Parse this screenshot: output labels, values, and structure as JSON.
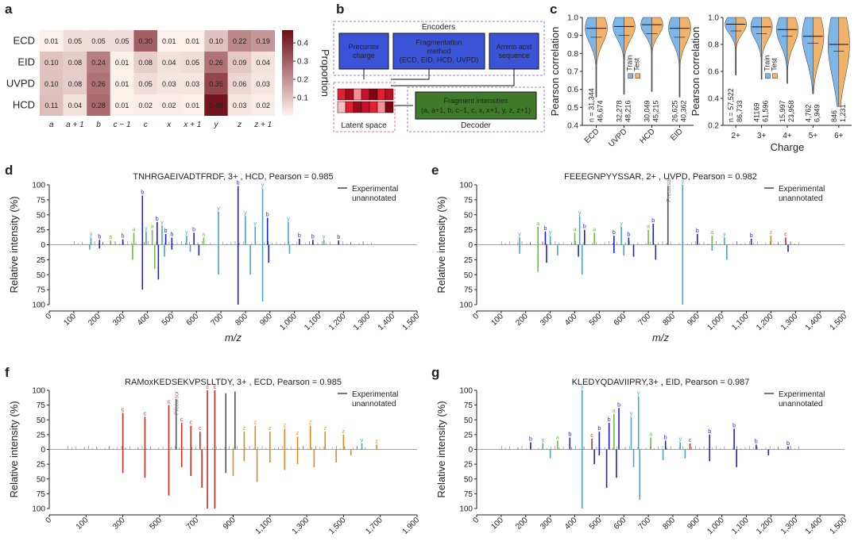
{
  "panels": {
    "a": "a",
    "b": "b",
    "c": "c",
    "d": "d",
    "e": "e",
    "f": "f",
    "g": "g"
  },
  "heatmap": {
    "rows": [
      "ECD",
      "EID",
      "UVPD",
      "HCD"
    ],
    "cols": [
      "a",
      "a + 1",
      "b",
      "c − 1",
      "c",
      "x",
      "x + 1",
      "y",
      "z",
      "z + 1"
    ],
    "values": [
      [
        0.01,
        0.05,
        0.05,
        0.05,
        0.3,
        0.01,
        0.01,
        0.1,
        0.22,
        0.19
      ],
      [
        0.1,
        0.08,
        0.24,
        0.01,
        0.08,
        0.04,
        0.05,
        0.26,
        0.09,
        0.04
      ],
      [
        0.1,
        0.08,
        0.26,
        0.01,
        0.05,
        0.03,
        0.03,
        0.35,
        0.06,
        0.03
      ],
      [
        0.11,
        0.04,
        0.28,
        0.01,
        0.02,
        0.02,
        0.01,
        0.45,
        0.03,
        0.02
      ]
    ],
    "value_labels": [
      [
        "0.01",
        "0.05",
        "0.05",
        "0.05",
        "0.30",
        "0.01",
        "0.01",
        "0.10",
        "0.22",
        "0.19"
      ],
      [
        "0.10",
        "0.08",
        "0.24",
        "0.01",
        "0.08",
        "0.04",
        "0.05",
        "0.26",
        "0.09",
        "0.04"
      ],
      [
        "0.10",
        "0.08",
        "0.26",
        "0.01",
        "0.05",
        "0.03",
        "0.03",
        "0.35",
        "0.06",
        "0.03"
      ],
      [
        "0.11",
        "0.04",
        "0.28",
        "0.01",
        "0.02",
        "0.02",
        "0.01",
        "0.45",
        "0.03",
        "0.02"
      ]
    ],
    "colorbar_label": "Proportion",
    "colorbar_ticks": [
      "0.1",
      "0.2",
      "0.3",
      "0.4"
    ],
    "colorbar_tick_values": [
      0.1,
      0.2,
      0.3,
      0.4
    ],
    "vmax": 0.47
  },
  "diagram": {
    "encoders": "Encoders",
    "precursor": [
      "Precursor",
      "charge"
    ],
    "fragmentation": [
      "Fragmentation",
      "method",
      "(ECD, EID, HCD, UVPD)"
    ],
    "amino": [
      "Amino acid",
      "sequence"
    ],
    "latent": "Latent space",
    "fragint": [
      "Fragment intensities",
      "(a, a+1, b, c−1, c, x, x+1, y, z, z+1)"
    ],
    "decoder": "Decoder",
    "colors": {
      "encoder_box": "#3b53d6",
      "decoder_box": "#3f7a2a",
      "latent": "#c8102e"
    }
  },
  "violin_left": {
    "ylabel": "Pearson correlation",
    "categories": [
      "ECD",
      "UVPD",
      "HCD",
      "EID"
    ],
    "yticks": [
      "0.4",
      "0.5",
      "0.6",
      "0.7",
      "0.8",
      "0.9",
      "1.0"
    ],
    "ylim": [
      0.4,
      1.0
    ],
    "train_counts": [
      "n = 31,344",
      "32,278",
      "30,049",
      "26,625"
    ],
    "test_counts": [
      "46,674",
      "48,216",
      "45,215",
      "40,362"
    ],
    "legend": [
      "Train",
      "Test"
    ],
    "medians": [
      0.94,
      0.95,
      0.96,
      0.94
    ]
  },
  "violin_right": {
    "ylabel": "Pearson correlation",
    "xlabel": "Charge",
    "categories": [
      "2+",
      "3+",
      "4+",
      "5+",
      "6+"
    ],
    "yticks": [
      "0.2",
      "0.4",
      "0.6",
      "0.8",
      "1.0"
    ],
    "ylim": [
      0.2,
      1.0
    ],
    "train_counts": [
      "n = 57,522",
      "41169",
      "15,997",
      "4,762",
      "846"
    ],
    "test_counts": [
      "86,733",
      "61,596",
      "23,958",
      "6,949",
      "1,231"
    ],
    "legend": [
      "Train",
      "Test"
    ],
    "medians": [
      0.95,
      0.93,
      0.91,
      0.86,
      0.8
    ]
  },
  "colors": {
    "train": "#7fb6e8",
    "test": "#f1b26c",
    "b": "#1f1fd1",
    "y": "#45a7c2",
    "a": "#6cbf3a",
    "c": "#cc2b1d",
    "z": "#e08a1a",
    "other": "#555555"
  },
  "spectra": [
    {
      "id": "d",
      "title": "TNHRGAEIVADTFRDF, 3+ , HCD, Pearson = 0.985",
      "xticks": [
        "0",
        "100",
        "200",
        "300",
        "400",
        "500",
        "600",
        "700",
        "800",
        "900",
        "1,000",
        "1,100",
        "1,200",
        "1,300",
        "1,400",
        "1,500"
      ],
      "xlim": [
        0,
        1500
      ],
      "xlabel": "m/z",
      "ylabel": "Relative intensity (%)",
      "yticks": [
        "100",
        "75",
        "50",
        "25",
        "0",
        "25",
        "50",
        "75",
        "100"
      ],
      "legend": [
        "Experimental",
        "unannotated"
      ],
      "peaks": [
        [
          170,
          12,
          "y"
        ],
        [
          205,
          8,
          "b"
        ],
        [
          250,
          7,
          "a"
        ],
        [
          300,
          9,
          "b"
        ],
        [
          345,
          20,
          "a"
        ],
        [
          380,
          82,
          "b"
        ],
        [
          395,
          22,
          "y"
        ],
        [
          420,
          25,
          "a"
        ],
        [
          440,
          38,
          "b"
        ],
        [
          460,
          32,
          "y"
        ],
        [
          475,
          18,
          "b"
        ],
        [
          500,
          12,
          "b"
        ],
        [
          560,
          15,
          "y"
        ],
        [
          590,
          20,
          "b"
        ],
        [
          630,
          12,
          "a"
        ],
        [
          690,
          55,
          "y"
        ],
        [
          770,
          98,
          "b"
        ],
        [
          800,
          48,
          "y"
        ],
        [
          840,
          30,
          "y"
        ],
        [
          870,
          94,
          "y"
        ],
        [
          890,
          45,
          "b"
        ],
        [
          975,
          38,
          "y"
        ],
        [
          1020,
          10,
          "b"
        ],
        [
          1075,
          8,
          "b"
        ],
        [
          1120,
          8,
          "y"
        ],
        [
          1180,
          7,
          "b"
        ]
      ],
      "mirror": [
        [
          165,
          -8,
          "y"
        ],
        [
          205,
          -6,
          "b"
        ],
        [
          340,
          -25,
          "a"
        ],
        [
          380,
          -75,
          "b"
        ],
        [
          430,
          -40,
          "a"
        ],
        [
          445,
          -58,
          "b"
        ],
        [
          470,
          -20,
          "y"
        ],
        [
          500,
          -8,
          "b"
        ],
        [
          575,
          -12,
          "y"
        ],
        [
          610,
          -18,
          "b"
        ],
        [
          690,
          -50,
          "y"
        ],
        [
          770,
          -100,
          "b"
        ],
        [
          820,
          -50,
          "y"
        ],
        [
          870,
          -95,
          "y"
        ],
        [
          895,
          -30,
          "b"
        ],
        [
          980,
          -15,
          "y"
        ]
      ]
    },
    {
      "id": "e",
      "title": "FEEEGNPYYSSAR, 2+ , UVPD, Pearson = 0.982",
      "xticks": [
        "0",
        "100",
        "200",
        "300",
        "400",
        "500",
        "600",
        "700",
        "800",
        "900",
        "1,000",
        "1,100",
        "1,200",
        "1,300",
        "1,400",
        "1,500"
      ],
      "xlim": [
        0,
        1500
      ],
      "xlabel": "m/z",
      "ylabel": "Relative intensity (%)",
      "yticks": [
        "100",
        "75",
        "50",
        "25",
        "0",
        "25",
        "50",
        "75",
        "100"
      ],
      "legend": [
        "Experimental",
        "unannotated"
      ],
      "annot": "Precursor",
      "peaks": [
        [
          175,
          12,
          "y"
        ],
        [
          250,
          30,
          "a"
        ],
        [
          280,
          22,
          "b"
        ],
        [
          300,
          15,
          "y"
        ],
        [
          400,
          20,
          "a"
        ],
        [
          420,
          48,
          "y"
        ],
        [
          440,
          25,
          "b"
        ],
        [
          480,
          20,
          "a"
        ],
        [
          560,
          15,
          "b"
        ],
        [
          590,
          30,
          "y"
        ],
        [
          620,
          12,
          "b"
        ],
        [
          700,
          25,
          "a"
        ],
        [
          720,
          35,
          "b"
        ],
        [
          780,
          98,
          "other"
        ],
        [
          840,
          100,
          "y"
        ],
        [
          900,
          18,
          "b"
        ],
        [
          960,
          15,
          "a"
        ],
        [
          1010,
          12,
          "y"
        ],
        [
          1120,
          10,
          "b"
        ],
        [
          1200,
          15,
          "z"
        ],
        [
          1260,
          12,
          "c"
        ]
      ],
      "mirror": [
        [
          175,
          -15,
          "y"
        ],
        [
          250,
          -45,
          "a"
        ],
        [
          285,
          -30,
          "b"
        ],
        [
          330,
          -18,
          "y"
        ],
        [
          415,
          -20,
          "b"
        ],
        [
          430,
          -50,
          "y"
        ],
        [
          560,
          -14,
          "b"
        ],
        [
          600,
          -18,
          "y"
        ],
        [
          640,
          -20,
          "b"
        ],
        [
          730,
          -25,
          "b"
        ],
        [
          840,
          -100,
          "y"
        ],
        [
          960,
          -10,
          "y"
        ],
        [
          1020,
          -25,
          "y"
        ],
        [
          1270,
          -12,
          "b"
        ]
      ]
    },
    {
      "id": "f",
      "title": "RAMoxKEDSEKVPSLLTDY, 3+ , ECD, Pearson = 0.985",
      "xticks": [
        "0",
        "100",
        "300",
        "500",
        "700",
        "900",
        "1,100",
        "1,300",
        "1,500",
        "1,700",
        "1,900"
      ],
      "xlim": [
        0,
        2000
      ],
      "xlabel": "",
      "ylabel": "Relative intensity (%)",
      "yticks": [
        "100",
        "75",
        "50",
        "25",
        "0",
        "25",
        "50",
        "75",
        "100"
      ],
      "legend": [
        "Experimental",
        "unannotated"
      ],
      "annot": "Precursor",
      "peaks": [
        [
          400,
          62,
          "c"
        ],
        [
          520,
          55,
          "c"
        ],
        [
          650,
          75,
          "c"
        ],
        [
          690,
          85,
          "other"
        ],
        [
          720,
          45,
          "c"
        ],
        [
          770,
          40,
          "c"
        ],
        [
          820,
          30,
          "c"
        ],
        [
          860,
          100,
          "c"
        ],
        [
          900,
          100,
          "c"
        ],
        [
          960,
          95,
          "other"
        ],
        [
          1010,
          98,
          "other"
        ],
        [
          1060,
          30,
          "z"
        ],
        [
          1120,
          40,
          "z"
        ],
        [
          1200,
          30,
          "z"
        ],
        [
          1280,
          35,
          "z"
        ],
        [
          1350,
          22,
          "z"
        ],
        [
          1420,
          40,
          "z"
        ],
        [
          1500,
          30,
          "z"
        ],
        [
          1600,
          25,
          "z"
        ],
        [
          1700,
          10,
          "y"
        ],
        [
          1780,
          8,
          "z"
        ]
      ],
      "mirror": [
        [
          400,
          -40,
          "c"
        ],
        [
          520,
          -48,
          "c"
        ],
        [
          650,
          -78,
          "c"
        ],
        [
          720,
          -30,
          "c"
        ],
        [
          770,
          -45,
          "c"
        ],
        [
          830,
          -65,
          "c"
        ],
        [
          860,
          -100,
          "c"
        ],
        [
          900,
          -100,
          "c"
        ],
        [
          960,
          -40,
          "other"
        ],
        [
          1000,
          -45,
          "z"
        ],
        [
          1060,
          -20,
          "z"
        ],
        [
          1130,
          -55,
          "z"
        ],
        [
          1200,
          -22,
          "z"
        ],
        [
          1280,
          -35,
          "z"
        ],
        [
          1350,
          -25,
          "z"
        ],
        [
          1440,
          -30,
          "z"
        ],
        [
          1560,
          -22,
          "z"
        ],
        [
          1640,
          -10,
          "z"
        ]
      ]
    },
    {
      "id": "g",
      "title": "KLEDYQDAVIIPRY,3+ , EID, Pearson = 0.987",
      "xticks": [
        "0",
        "100",
        "200",
        "300",
        "400",
        "500",
        "600",
        "700",
        "800",
        "900",
        "1,000",
        "1,100",
        "1,200",
        "1,300",
        "1,400",
        "1,500"
      ],
      "xlim": [
        0,
        1500
      ],
      "xlabel": "",
      "ylabel": "Relative intensity (%)",
      "yticks": [
        "100",
        "75",
        "50",
        "25",
        "0",
        "25",
        "50",
        "75",
        "100"
      ],
      "legend": [
        "Experimental",
        "unannotated"
      ],
      "annot": "Precursor",
      "peaks": [
        [
          220,
          12,
          "b"
        ],
        [
          270,
          10,
          "y"
        ],
        [
          330,
          15,
          "a"
        ],
        [
          380,
          20,
          "b"
        ],
        [
          430,
          100,
          "y"
        ],
        [
          470,
          18,
          "c"
        ],
        [
          500,
          30,
          "b"
        ],
        [
          540,
          45,
          "b"
        ],
        [
          560,
          60,
          "a"
        ],
        [
          580,
          70,
          "b"
        ],
        [
          630,
          55,
          "y"
        ],
        [
          660,
          90,
          "y"
        ],
        [
          710,
          20,
          "a"
        ],
        [
          770,
          15,
          "b"
        ],
        [
          830,
          12,
          "y"
        ],
        [
          870,
          10,
          "c"
        ],
        [
          950,
          25,
          "b"
        ],
        [
          1050,
          35,
          "b"
        ],
        [
          1140,
          8,
          "b"
        ],
        [
          1270,
          5,
          "b"
        ]
      ],
      "mirror": [
        [
          300,
          -15,
          "y"
        ],
        [
          430,
          -100,
          "y"
        ],
        [
          480,
          -25,
          "b"
        ],
        [
          500,
          -10,
          "b"
        ],
        [
          530,
          -65,
          "b"
        ],
        [
          570,
          -48,
          "b"
        ],
        [
          640,
          -30,
          "y"
        ],
        [
          665,
          -85,
          "y"
        ],
        [
          760,
          -18,
          "y"
        ],
        [
          850,
          -15,
          "y"
        ],
        [
          950,
          -20,
          "b"
        ],
        [
          1060,
          -30,
          "b"
        ],
        [
          1190,
          -10,
          "b"
        ]
      ]
    }
  ]
}
